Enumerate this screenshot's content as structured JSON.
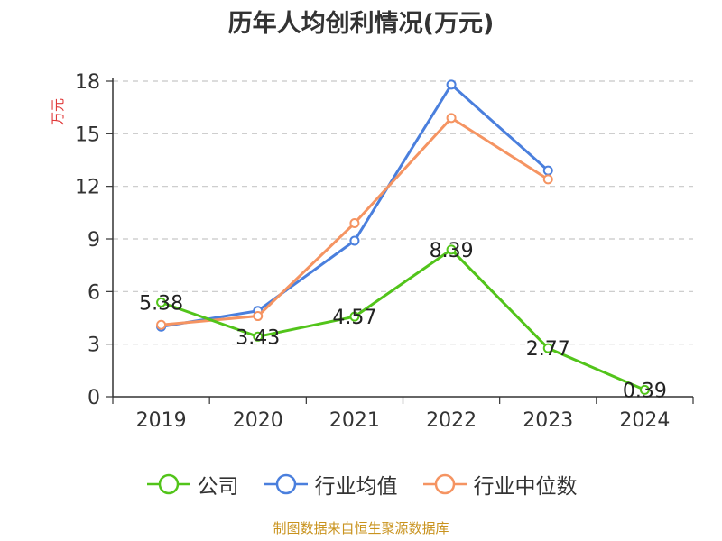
{
  "chart_data": {
    "type": "line",
    "title": "历年人均创利情况(万元)",
    "ylabel": "万元",
    "xlabel": "",
    "categories": [
      "2019",
      "2020",
      "2021",
      "2022",
      "2023",
      "2024"
    ],
    "ylim": [
      0,
      18
    ],
    "yticks": [
      0,
      3,
      6,
      9,
      12,
      15,
      18
    ],
    "grid": true,
    "legend_position": "bottom",
    "series": [
      {
        "name": "公司",
        "color": "#52c41a",
        "values": [
          5.38,
          3.43,
          4.57,
          8.39,
          2.77,
          0.39
        ],
        "labels": [
          "5.38",
          "3.43",
          "4.57",
          "8.39",
          "2.77",
          "0.39"
        ]
      },
      {
        "name": "行业均值",
        "color": "#4a7fdd",
        "values": [
          4.0,
          4.9,
          8.9,
          17.8,
          12.9,
          null
        ]
      },
      {
        "name": "行业中位数",
        "color": "#f59462",
        "values": [
          4.1,
          4.6,
          9.9,
          15.9,
          12.4,
          null
        ]
      }
    ]
  },
  "source": "制图数据来自恒生聚源数据库"
}
